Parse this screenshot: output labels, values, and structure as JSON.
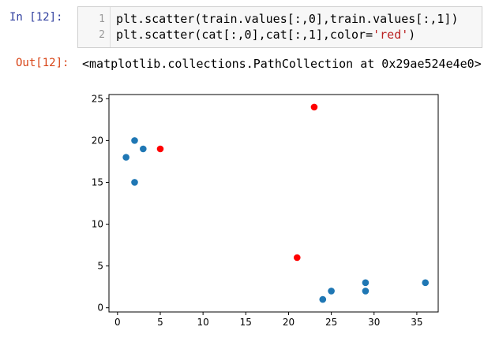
{
  "cell": {
    "in_prompt": "In  [12]:",
    "out_prompt": "Out[12]:",
    "code_lines": [
      {
        "num": "1",
        "pre": "plt.scatter(train.values[:,0],train.values[:,1])",
        "str": "",
        "post": ""
      },
      {
        "num": "2",
        "pre": "plt.scatter(cat[:,0],cat[:,1],color=",
        "str": "'red'",
        "post": ")"
      }
    ],
    "output_text": "<matplotlib.collections.PathCollection at 0x29ae524e4e0>"
  },
  "chart_data": {
    "type": "scatter",
    "xlim": [
      -1.0,
      37.5
    ],
    "ylim": [
      -0.5,
      25.5
    ],
    "xticks": [
      0,
      5,
      10,
      15,
      20,
      25,
      30,
      35
    ],
    "yticks": [
      0,
      5,
      10,
      15,
      20,
      25
    ],
    "grid": false,
    "series": [
      {
        "color": "#1f77b4",
        "points": [
          [
            1,
            18
          ],
          [
            2,
            20
          ],
          [
            2,
            15
          ],
          [
            3,
            19
          ],
          [
            24,
            1
          ],
          [
            25,
            2
          ],
          [
            29,
            3
          ],
          [
            29,
            2
          ],
          [
            36,
            3
          ]
        ]
      },
      {
        "color": "#ff0000",
        "points": [
          [
            5,
            19
          ],
          [
            21,
            6
          ],
          [
            23,
            24
          ]
        ]
      }
    ]
  }
}
